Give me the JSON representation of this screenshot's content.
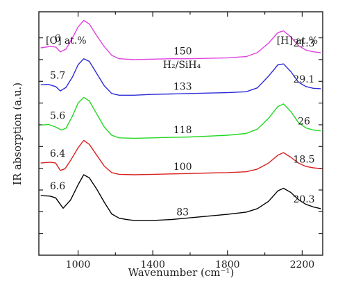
{
  "chart_data": {
    "type": "line",
    "xlabel": "Wavenumber (cm⁻¹)",
    "ylabel": "IR absorption (a.u.)",
    "xlim": [
      790,
      2310
    ],
    "ylim": [
      0,
      5.6
    ],
    "x_ticks": [
      1000,
      1400,
      1800,
      2200
    ],
    "y_ticks": [
      0.5,
      1,
      1.5,
      2,
      2.5,
      3,
      3.5,
      4,
      4.5,
      5
    ],
    "y_tick_labels": "none",
    "grid": false,
    "left_header": "[O] at.%",
    "right_header": "[H] at.%",
    "ratio_header": "H₂/SiH₄",
    "series": [
      {
        "ratio_label": "83",
        "o_label": "6.6",
        "h_label": "20.3",
        "color": "#000000",
        "offset": 0.5,
        "points": [
          [
            800,
            1.37
          ],
          [
            850,
            1.36
          ],
          [
            880,
            1.32
          ],
          [
            920,
            1.08
          ],
          [
            960,
            1.27
          ],
          [
            1000,
            1.62
          ],
          [
            1030,
            1.85
          ],
          [
            1060,
            1.78
          ],
          [
            1100,
            1.52
          ],
          [
            1140,
            1.22
          ],
          [
            1180,
            0.95
          ],
          [
            1220,
            0.85
          ],
          [
            1260,
            0.82
          ],
          [
            1300,
            0.8
          ],
          [
            1400,
            0.8
          ],
          [
            1500,
            0.82
          ],
          [
            1600,
            0.86
          ],
          [
            1700,
            0.9
          ],
          [
            1800,
            0.94
          ],
          [
            1900,
            0.99
          ],
          [
            1960,
            1.07
          ],
          [
            2020,
            1.24
          ],
          [
            2070,
            1.48
          ],
          [
            2100,
            1.54
          ],
          [
            2140,
            1.44
          ],
          [
            2180,
            1.28
          ],
          [
            2220,
            1.17
          ],
          [
            2260,
            1.11
          ],
          [
            2300,
            1.07
          ]
        ]
      },
      {
        "ratio_label": "100",
        "o_label": "6.4",
        "h_label": "18.5",
        "color": "#d92020",
        "offset": 1.5,
        "points": [
          [
            800,
            2.12
          ],
          [
            850,
            2.14
          ],
          [
            880,
            2.12
          ],
          [
            905,
            1.95
          ],
          [
            930,
            1.99
          ],
          [
            960,
            2.18
          ],
          [
            1000,
            2.47
          ],
          [
            1030,
            2.64
          ],
          [
            1060,
            2.55
          ],
          [
            1100,
            2.3
          ],
          [
            1140,
            2.05
          ],
          [
            1180,
            1.9
          ],
          [
            1220,
            1.86
          ],
          [
            1300,
            1.85
          ],
          [
            1400,
            1.86
          ],
          [
            1500,
            1.87
          ],
          [
            1600,
            1.88
          ],
          [
            1700,
            1.89
          ],
          [
            1800,
            1.9
          ],
          [
            1900,
            1.92
          ],
          [
            1960,
            1.98
          ],
          [
            2020,
            2.12
          ],
          [
            2070,
            2.3
          ],
          [
            2100,
            2.36
          ],
          [
            2140,
            2.25
          ],
          [
            2180,
            2.12
          ],
          [
            2220,
            2.04
          ],
          [
            2260,
            2.01
          ],
          [
            2300,
            1.99
          ]
        ]
      },
      {
        "ratio_label": "118",
        "o_label": "5.6",
        "h_label": "26",
        "color": "#22d822",
        "offset": 2.5,
        "points": [
          [
            800,
            2.99
          ],
          [
            840,
            3.01
          ],
          [
            880,
            2.95
          ],
          [
            910,
            2.88
          ],
          [
            935,
            2.92
          ],
          [
            970,
            3.2
          ],
          [
            1000,
            3.5
          ],
          [
            1030,
            3.63
          ],
          [
            1060,
            3.55
          ],
          [
            1100,
            3.25
          ],
          [
            1140,
            2.95
          ],
          [
            1180,
            2.76
          ],
          [
            1220,
            2.7
          ],
          [
            1300,
            2.69
          ],
          [
            1400,
            2.7
          ],
          [
            1500,
            2.71
          ],
          [
            1600,
            2.72
          ],
          [
            1700,
            2.74
          ],
          [
            1800,
            2.76
          ],
          [
            1900,
            2.8
          ],
          [
            1960,
            2.9
          ],
          [
            2020,
            3.15
          ],
          [
            2070,
            3.42
          ],
          [
            2100,
            3.48
          ],
          [
            2140,
            3.3
          ],
          [
            2180,
            3.05
          ],
          [
            2220,
            2.93
          ],
          [
            2260,
            2.88
          ],
          [
            2300,
            2.86
          ]
        ]
      },
      {
        "ratio_label": "133",
        "o_label": "5.7",
        "h_label": "29.1",
        "color": "#2a2ad8",
        "offset": 3.5,
        "points": [
          [
            800,
            3.92
          ],
          [
            840,
            3.93
          ],
          [
            880,
            3.88
          ],
          [
            905,
            3.78
          ],
          [
            935,
            3.86
          ],
          [
            970,
            4.1
          ],
          [
            1000,
            4.38
          ],
          [
            1030,
            4.52
          ],
          [
            1060,
            4.46
          ],
          [
            1100,
            4.18
          ],
          [
            1140,
            3.9
          ],
          [
            1180,
            3.72
          ],
          [
            1220,
            3.68
          ],
          [
            1300,
            3.68
          ],
          [
            1400,
            3.7
          ],
          [
            1500,
            3.71
          ],
          [
            1600,
            3.72
          ],
          [
            1700,
            3.73
          ],
          [
            1800,
            3.74
          ],
          [
            1900,
            3.76
          ],
          [
            1960,
            3.85
          ],
          [
            2020,
            4.12
          ],
          [
            2070,
            4.38
          ],
          [
            2100,
            4.4
          ],
          [
            2140,
            4.22
          ],
          [
            2180,
            3.98
          ],
          [
            2220,
            3.88
          ],
          [
            2260,
            3.84
          ],
          [
            2300,
            3.83
          ]
        ]
      },
      {
        "ratio_label": "150",
        "o_label": "6",
        "h_label": "21.3",
        "color": "#e040e0",
        "offset": 4.5,
        "points": [
          [
            800,
            4.77
          ],
          [
            850,
            4.8
          ],
          [
            880,
            4.79
          ],
          [
            905,
            4.68
          ],
          [
            935,
            4.74
          ],
          [
            970,
            5.0
          ],
          [
            1000,
            5.25
          ],
          [
            1030,
            5.4
          ],
          [
            1060,
            5.32
          ],
          [
            1100,
            5.05
          ],
          [
            1140,
            4.8
          ],
          [
            1180,
            4.6
          ],
          [
            1220,
            4.52
          ],
          [
            1300,
            4.5
          ],
          [
            1400,
            4.51
          ],
          [
            1500,
            4.52
          ],
          [
            1600,
            4.52
          ],
          [
            1700,
            4.53
          ],
          [
            1800,
            4.54
          ],
          [
            1900,
            4.57
          ],
          [
            1960,
            4.66
          ],
          [
            2020,
            4.88
          ],
          [
            2070,
            5.12
          ],
          [
            2100,
            5.16
          ],
          [
            2140,
            5.02
          ],
          [
            2180,
            4.82
          ],
          [
            2220,
            4.72
          ],
          [
            2260,
            4.68
          ],
          [
            2300,
            4.66
          ]
        ]
      }
    ]
  }
}
